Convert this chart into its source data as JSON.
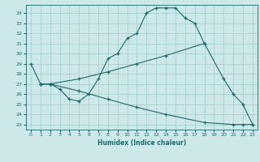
{
  "xlabel": "Humidex (Indice chaleur)",
  "ylabel": "",
  "xlim": [
    -0.5,
    23.5
  ],
  "ylim": [
    22.5,
    34.8
  ],
  "yticks": [
    23,
    24,
    25,
    26,
    27,
    28,
    29,
    30,
    31,
    32,
    33,
    34
  ],
  "xticks": [
    0,
    1,
    2,
    3,
    4,
    5,
    6,
    7,
    8,
    9,
    10,
    11,
    12,
    13,
    14,
    15,
    16,
    17,
    18,
    19,
    20,
    21,
    22,
    23
  ],
  "bg_color": "#cde8e8",
  "line_color": "#1a6b6b",
  "grid_color": "#a0cccc",
  "line1_x": [
    0,
    1,
    2,
    3,
    4,
    5,
    6,
    7,
    8,
    9,
    10,
    11,
    12,
    13,
    14,
    15,
    16,
    17,
    18,
    20,
    21,
    22,
    23
  ],
  "line1_y": [
    29,
    27,
    27,
    26.5,
    25.5,
    25.3,
    26.0,
    27.5,
    29.5,
    30.0,
    31.5,
    32.0,
    34.0,
    34.5,
    34.5,
    34.5,
    33.5,
    33.0,
    31.0,
    27.5,
    26.0,
    25.0,
    23.0
  ],
  "line2_x": [
    1,
    2,
    5,
    8,
    11,
    14,
    18
  ],
  "line2_y": [
    27.0,
    27.0,
    27.5,
    28.2,
    29.0,
    29.8,
    31.0
  ],
  "line3_x": [
    1,
    2,
    5,
    8,
    11,
    14,
    18,
    21,
    22,
    23
  ],
  "line3_y": [
    27.0,
    27.0,
    26.3,
    25.5,
    24.7,
    24.0,
    23.2,
    23.0,
    23.0,
    23.0
  ]
}
